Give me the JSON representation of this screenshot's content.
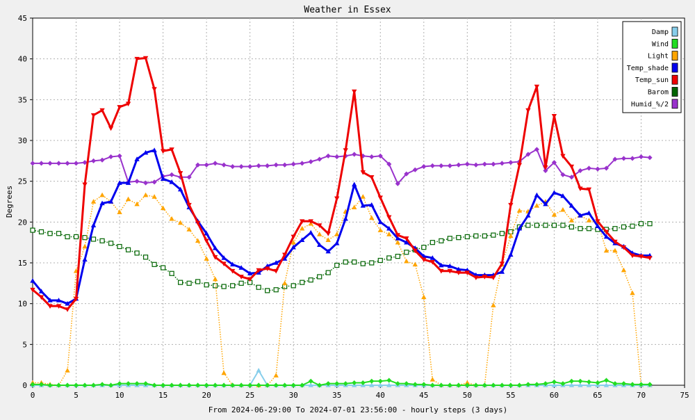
{
  "chart_data": {
    "type": "line",
    "title": "Weather in Essex",
    "xlabel": "From 2024-06-29:00 To 2024-07-01 23:56:00 - hourly steps (3 days)",
    "ylabel": "Degrees",
    "xlim": [
      0,
      75
    ],
    "ylim": [
      0,
      45
    ],
    "x_ticks": [
      0,
      5,
      10,
      15,
      20,
      25,
      30,
      35,
      40,
      45,
      50,
      55,
      60,
      65,
      70,
      75
    ],
    "y_ticks": [
      0,
      5,
      10,
      15,
      20,
      25,
      30,
      35,
      40,
      45
    ],
    "grid": true,
    "legend_position": "top-right",
    "x": [
      0,
      1,
      2,
      3,
      4,
      5,
      6,
      7,
      8,
      9,
      10,
      11,
      12,
      13,
      14,
      15,
      16,
      17,
      18,
      19,
      20,
      21,
      22,
      23,
      24,
      25,
      26,
      27,
      28,
      29,
      30,
      31,
      32,
      33,
      34,
      35,
      36,
      37,
      38,
      39,
      40,
      41,
      42,
      43,
      44,
      45,
      46,
      47,
      48,
      49,
      50,
      51,
      52,
      53,
      54,
      55,
      56,
      57,
      58,
      59,
      60,
      61,
      62,
      63,
      64,
      65,
      66,
      67,
      68,
      69,
      70,
      71
    ],
    "series": [
      {
        "name": "Damp",
        "color": "#87ceeb",
        "marker": "triangle",
        "style": "solid",
        "values": [
          0,
          0,
          0,
          0,
          0,
          0,
          0,
          0,
          0,
          0,
          0,
          0,
          0,
          0,
          0,
          0,
          0,
          0,
          0,
          0,
          0,
          0,
          0,
          0,
          0,
          0,
          1.8,
          0,
          0,
          0,
          0,
          0,
          0,
          0,
          0,
          0,
          0,
          0,
          0,
          0,
          0,
          0,
          0,
          0,
          0,
          0,
          0,
          0,
          0,
          0,
          0,
          0,
          0,
          0,
          0,
          0,
          0,
          0,
          0,
          0,
          0,
          0,
          0,
          0,
          0,
          0,
          0,
          0,
          0,
          0,
          0,
          0
        ]
      },
      {
        "name": "Wind",
        "color": "#22dd22",
        "marker": "diamond",
        "style": "solid",
        "values": [
          0.1,
          0.1,
          0,
          0,
          0,
          0,
          0,
          0,
          0.1,
          0,
          0.2,
          0.2,
          0.2,
          0.2,
          0,
          0,
          0,
          0,
          0,
          0,
          0,
          0,
          0,
          0,
          0,
          0,
          0,
          0,
          0,
          0,
          0,
          0,
          0.5,
          0,
          0.2,
          0.2,
          0.2,
          0.3,
          0.3,
          0.5,
          0.5,
          0.6,
          0.2,
          0.2,
          0.1,
          0.1,
          0,
          0,
          0,
          0,
          0,
          0,
          0,
          0,
          0,
          0,
          0,
          0.1,
          0.1,
          0.2,
          0.4,
          0.2,
          0.5,
          0.5,
          0.4,
          0.3,
          0.6,
          0.2,
          0.2,
          0.1,
          0.1,
          0.1
        ]
      },
      {
        "name": "Light",
        "color": "#ffa500",
        "marker": "triangle",
        "style": "dotted",
        "values": [
          0.3,
          0.3,
          0.1,
          0,
          1.8,
          14,
          17,
          22.5,
          23.3,
          22.5,
          21.2,
          22.8,
          22.2,
          23.3,
          23.1,
          21.7,
          20.4,
          19.9,
          19.1,
          17.7,
          15.5,
          13,
          1.5,
          0,
          0,
          0,
          0,
          0,
          1.2,
          12.5,
          17.5,
          19.2,
          19.8,
          18.5,
          17.8,
          18.5,
          21.3,
          21.8,
          23.1,
          20.5,
          19,
          18.5,
          17.5,
          15.2,
          14.8,
          10.8,
          0.7,
          0,
          0,
          0,
          0.3,
          0,
          0,
          9.8,
          14.8,
          18.3,
          21.4,
          21.3,
          22,
          22.5,
          20.9,
          21.5,
          20.2,
          20.8,
          20.2,
          20,
          16.5,
          16.5,
          14.1,
          11.3,
          0,
          0
        ]
      },
      {
        "name": "Temp_shade",
        "color": "#0000ee",
        "marker": "triangle-up",
        "style": "solid",
        "values": [
          12.8,
          11.5,
          10.4,
          10.4,
          10,
          10.6,
          15.4,
          19.6,
          22.3,
          22.5,
          24.8,
          24.8,
          27.7,
          28.5,
          28.8,
          25.3,
          24.9,
          24,
          21.8,
          20.1,
          18.6,
          16.8,
          15.6,
          14.8,
          14.4,
          13.7,
          13.8,
          14.6,
          15,
          15.5,
          16.9,
          17.8,
          18.7,
          17.2,
          16.4,
          17.4,
          20.4,
          24.6,
          22,
          22.1,
          20,
          19.2,
          18,
          17.5,
          16.8,
          15.8,
          15.6,
          14.7,
          14.6,
          14.2,
          14.1,
          13.5,
          13.5,
          13.5,
          13.9,
          16,
          19.2,
          20.8,
          23.3,
          22.2,
          23.6,
          23.2,
          22,
          20.8,
          21.1,
          19.5,
          18.2,
          17.4,
          17,
          16.2,
          15.9,
          15.9
        ]
      },
      {
        "name": "Temp_sun",
        "color": "#ee0000",
        "marker": "triangle-down",
        "style": "solid",
        "values": [
          11.7,
          10.8,
          9.7,
          9.7,
          9.3,
          10.6,
          24.6,
          33.1,
          33.7,
          31.5,
          34.1,
          34.5,
          40,
          40.1,
          36.3,
          28.7,
          28.9,
          26,
          22.1,
          19.9,
          17.7,
          15.7,
          14.9,
          14,
          13.3,
          13,
          14.1,
          14.3,
          14,
          16,
          18.2,
          20.1,
          20.1,
          19.6,
          18.6,
          22.9,
          28.8,
          36,
          26.1,
          25.5,
          23,
          20.6,
          18.4,
          18,
          16.5,
          15.4,
          15.1,
          14,
          14,
          13.8,
          13.8,
          13.2,
          13.3,
          13.2,
          14.9,
          22.1,
          27,
          33.7,
          36.6,
          26.7,
          33,
          28.1,
          26.8,
          24.1,
          24,
          20.1,
          18.8,
          17.6,
          16.9,
          15.9,
          15.8,
          15.6
        ]
      },
      {
        "name": "Barom",
        "color": "#006400",
        "marker": "square",
        "style": "dotted",
        "values": [
          19,
          18.8,
          18.6,
          18.6,
          18.2,
          18.2,
          18.1,
          17.9,
          17.7,
          17.4,
          17.0,
          16.6,
          16.2,
          15.7,
          14.8,
          14.4,
          13.7,
          12.6,
          12.5,
          12.7,
          12.3,
          12.2,
          12.1,
          12.2,
          12.5,
          12.6,
          12.0,
          11.6,
          11.7,
          12.1,
          12.2,
          12.6,
          12.9,
          13.3,
          13.8,
          14.7,
          15.1,
          15.1,
          14.9,
          15.0,
          15.3,
          15.6,
          15.8,
          16.3,
          16.6,
          16.9,
          17.5,
          17.7,
          18.0,
          18.1,
          18.2,
          18.3,
          18.3,
          18.4,
          18.6,
          18.8,
          19.4,
          19.6,
          19.6,
          19.6,
          19.6,
          19.6,
          19.4,
          19.2,
          19.2,
          19.1,
          19.1,
          19.2,
          19.4,
          19.5,
          19.8,
          19.8
        ]
      },
      {
        "name": "Humid_%/2",
        "color": "#9932cc",
        "marker": "diamond",
        "style": "solid",
        "values": [
          27.2,
          27.2,
          27.2,
          27.2,
          27.2,
          27.2,
          27.3,
          27.5,
          27.6,
          28,
          28.1,
          24.9,
          25,
          24.8,
          24.9,
          25.6,
          25.8,
          25.5,
          25.5,
          27,
          27,
          27.2,
          27,
          26.8,
          26.8,
          26.8,
          26.9,
          26.9,
          27,
          27,
          27.1,
          27.2,
          27.4,
          27.7,
          28.1,
          28,
          28.1,
          28.3,
          28.1,
          28,
          28.1,
          27.1,
          24.7,
          25.9,
          26.4,
          26.8,
          26.9,
          26.9,
          26.9,
          27,
          27.1,
          27,
          27.1,
          27.1,
          27.2,
          27.3,
          27.4,
          28.3,
          28.9,
          26.3,
          27.3,
          25.8,
          25.5,
          26.3,
          26.6,
          26.5,
          26.6,
          27.7,
          27.8,
          27.8,
          28,
          27.9
        ]
      }
    ]
  }
}
